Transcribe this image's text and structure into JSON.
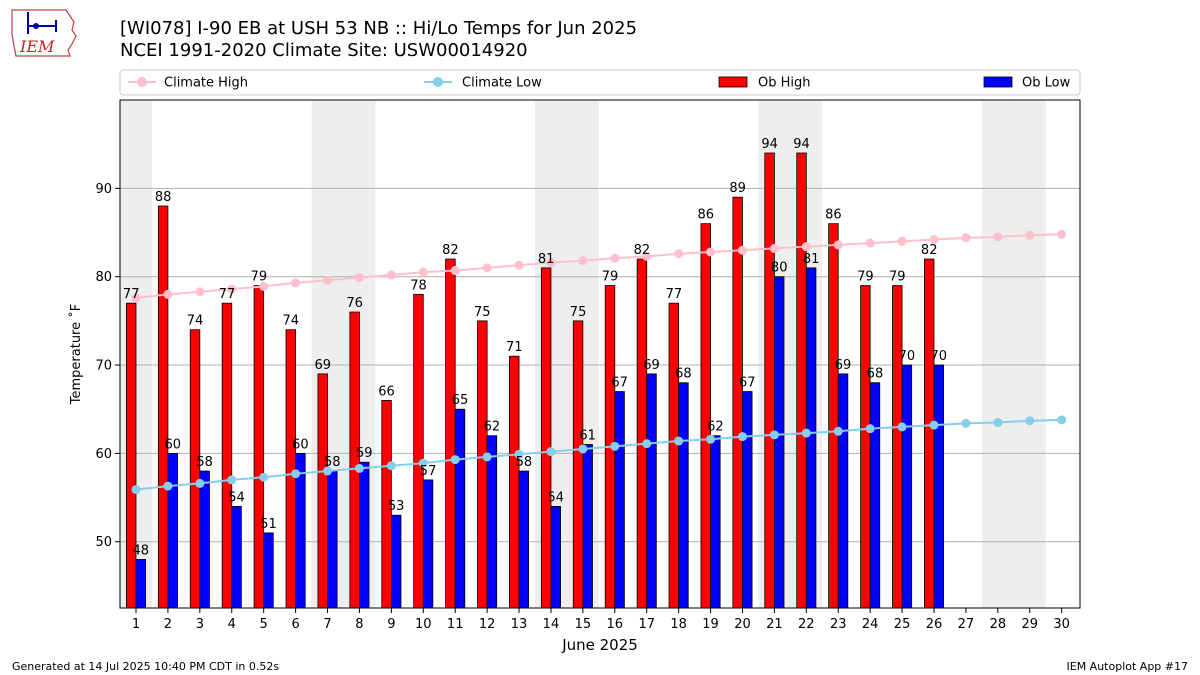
{
  "logo": {
    "text": "IEM",
    "icon": "iem-iowa-state-logo"
  },
  "titles": {
    "line1": "[WI078] I-90 EB at USH 53 NB  :: Hi/Lo Temps for Jun 2025",
    "line2": "NCEI 1991-2020 Climate Site: USW00014920"
  },
  "footer": {
    "left": "Generated at 14 Jul 2025 10:40 PM CDT in 0.52s",
    "right": "IEM Autoplot App #17"
  },
  "colors": {
    "ob_high": "#ff0000",
    "ob_low": "#0000ff",
    "climate_high": "#ffc0cb",
    "climate_low": "#87ceeb",
    "weekend_shade": "#eeeeee",
    "grid": "#b0b0b0"
  },
  "chart_data": {
    "type": "bar",
    "xlabel": "June 2025",
    "ylabel": "Temperature ˚F",
    "ylim": [
      42.5,
      100
    ],
    "yticks": [
      50,
      60,
      70,
      80,
      90
    ],
    "grid": "horizontal",
    "legend_position": "top",
    "categories": [
      "1",
      "2",
      "3",
      "4",
      "5",
      "6",
      "7",
      "8",
      "9",
      "10",
      "11",
      "12",
      "13",
      "14",
      "15",
      "16",
      "17",
      "18",
      "19",
      "20",
      "21",
      "22",
      "23",
      "24",
      "25",
      "26",
      "27",
      "28",
      "29",
      "30"
    ],
    "shaded_weekend_days": [
      [
        1,
        1
      ],
      [
        7,
        8
      ],
      [
        14,
        15
      ],
      [
        21,
        22
      ],
      [
        28,
        29
      ]
    ],
    "series": [
      {
        "name": "Climate High",
        "kind": "line",
        "values": [
          77.6,
          78.0,
          78.3,
          78.6,
          78.9,
          79.3,
          79.6,
          79.9,
          80.2,
          80.5,
          80.7,
          81.0,
          81.3,
          81.6,
          81.8,
          82.1,
          82.3,
          82.6,
          82.8,
          83.0,
          83.2,
          83.4,
          83.6,
          83.8,
          84.0,
          84.2,
          84.4,
          84.5,
          84.7,
          84.8
        ]
      },
      {
        "name": "Climate Low",
        "kind": "line",
        "values": [
          55.9,
          56.3,
          56.6,
          57.0,
          57.3,
          57.7,
          58.0,
          58.3,
          58.6,
          58.9,
          59.3,
          59.6,
          59.9,
          60.2,
          60.5,
          60.8,
          61.1,
          61.4,
          61.6,
          61.9,
          62.1,
          62.3,
          62.5,
          62.8,
          63.0,
          63.2,
          63.4,
          63.5,
          63.7,
          63.8
        ]
      },
      {
        "name": "Ob High",
        "kind": "bar",
        "values": [
          77,
          88,
          74,
          77,
          79,
          74,
          69,
          76,
          66,
          78,
          82,
          75,
          71,
          81,
          75,
          79,
          82,
          77,
          86,
          89,
          94,
          94,
          86,
          79,
          79,
          82,
          null,
          null,
          null,
          null
        ]
      },
      {
        "name": "Ob Low",
        "kind": "bar",
        "values": [
          48,
          60,
          58,
          54,
          51,
          60,
          58,
          59,
          53,
          57,
          65,
          62,
          58,
          54,
          61,
          67,
          69,
          68,
          62,
          67,
          80,
          81,
          69,
          68,
          70,
          70,
          null,
          null,
          null,
          null
        ]
      }
    ]
  }
}
